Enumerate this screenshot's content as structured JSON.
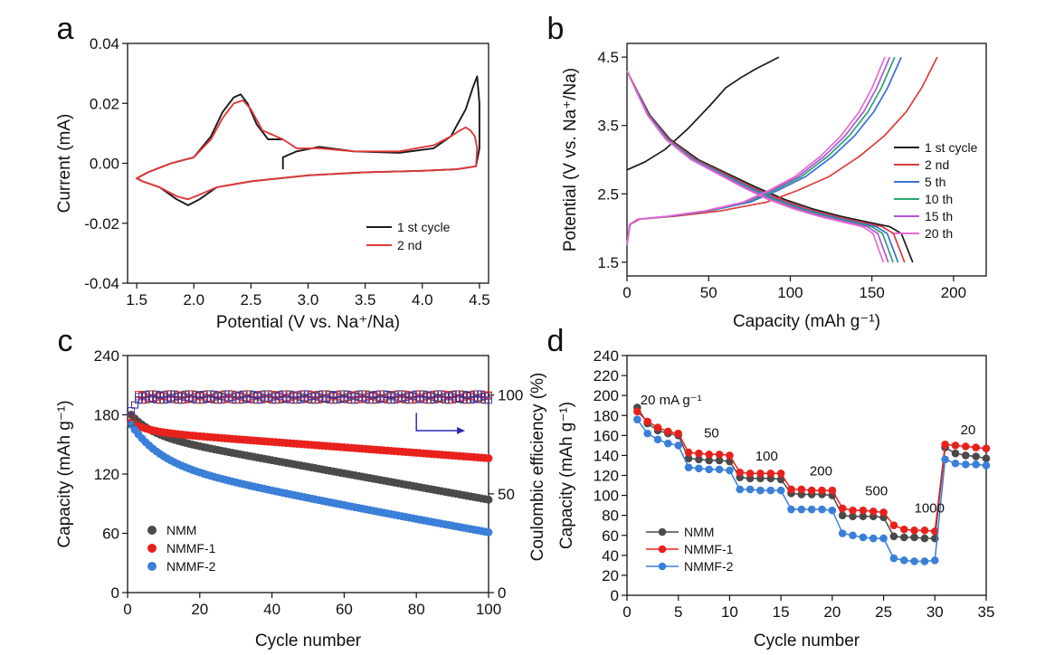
{
  "colors": {
    "black": "#1a1a1a",
    "red": "#e0393a",
    "nmm": "#4a4a4a",
    "nmmf1": "#e8211d",
    "nmmf2": "#3a7fd8",
    "blue": "#2b2bb5",
    "b5": "#3b6fd6",
    "b10": "#2aa56f",
    "b15": "#b354d6",
    "b20": "#e46ad2"
  },
  "chart_data": [
    {
      "type": "line",
      "panel": "a",
      "xlabel": "Potential (V vs. Na⁺/Na)",
      "ylabel": "Current (mA)",
      "xlim": [
        1.5,
        4.5
      ],
      "ylim": [
        -0.04,
        0.04
      ],
      "xticks": [
        "1.5",
        "2.0",
        "2.5",
        "3.0",
        "3.5",
        "4.0",
        "4.5"
      ],
      "yticks": [
        "-0.04",
        "-0.02",
        "0.00",
        "0.02",
        "0.04"
      ],
      "legend": "bottom-right",
      "series": [
        {
          "name": "1 st cycle",
          "color_key": "black",
          "x": [
            2.78,
            2.78,
            2.9,
            3.1,
            3.4,
            3.8,
            4.1,
            4.25,
            4.38,
            4.44,
            4.48,
            4.5,
            4.5,
            4.47,
            4.3,
            4.0,
            3.5,
            3.0,
            2.5,
            2.2,
            2.05,
            1.95,
            1.85,
            1.7,
            1.55,
            1.5,
            1.6,
            1.8,
            2.0,
            2.15,
            2.25,
            2.35,
            2.41,
            2.47,
            2.55,
            2.65,
            2.78
          ],
          "y": [
            -0.002,
            0.002,
            0.004,
            0.0055,
            0.004,
            0.0035,
            0.005,
            0.009,
            0.018,
            0.025,
            0.029,
            0.02,
            0.005,
            -0.001,
            -0.002,
            -0.0025,
            -0.003,
            -0.004,
            -0.006,
            -0.008,
            -0.012,
            -0.014,
            -0.012,
            -0.008,
            -0.006,
            -0.005,
            -0.003,
            0.0,
            0.002,
            0.009,
            0.017,
            0.022,
            0.023,
            0.02,
            0.013,
            0.008,
            0.008
          ]
        },
        {
          "name": "2 nd",
          "color_key": "red",
          "x": [
            2.78,
            2.9,
            3.1,
            3.4,
            3.8,
            4.1,
            4.25,
            4.33,
            4.38,
            4.42,
            4.46,
            4.48,
            4.47,
            4.3,
            4.0,
            3.5,
            3.0,
            2.5,
            2.2,
            2.05,
            1.95,
            1.85,
            1.7,
            1.55,
            1.5,
            1.6,
            1.8,
            2.0,
            2.15,
            2.25,
            2.35,
            2.43,
            2.5,
            2.6,
            2.78
          ],
          "y": [
            0.008,
            0.005,
            0.005,
            0.004,
            0.004,
            0.006,
            0.009,
            0.011,
            0.012,
            0.011,
            0.009,
            0.005,
            -0.001,
            -0.002,
            -0.0025,
            -0.003,
            -0.004,
            -0.006,
            -0.008,
            -0.0105,
            -0.012,
            -0.011,
            -0.008,
            -0.006,
            -0.005,
            -0.003,
            0.0,
            0.002,
            0.008,
            0.015,
            0.02,
            0.021,
            0.018,
            0.011,
            0.008
          ]
        }
      ]
    },
    {
      "type": "line",
      "panel": "b",
      "xlabel": "Capacity (mAh g⁻¹)",
      "ylabel": "Potential (V vs. Na⁺/Na)",
      "xlim": [
        0,
        220
      ],
      "ylim": [
        1.3,
        4.7
      ],
      "xticks": [
        "0",
        "50",
        "100",
        "150",
        "200"
      ],
      "yticks": [
        "1.5",
        "2.5",
        "3.5",
        "4.5"
      ],
      "legend": "right",
      "series": [
        {
          "name": "1 st cycle",
          "color_key": "black",
          "charge_end": 93,
          "discharge_end": 175
        },
        {
          "name": "2 nd",
          "color_key": "red",
          "charge_end": 190,
          "discharge_end": 170
        },
        {
          "name": "5 th",
          "color_key": "b5",
          "charge_end": 168,
          "discharge_end": 166
        },
        {
          "name": "10 th",
          "color_key": "b10",
          "charge_end": 164,
          "discharge_end": 163
        },
        {
          "name": "15 th",
          "color_key": "b15",
          "charge_end": 161,
          "discharge_end": 160
        },
        {
          "name": "20 th",
          "color_key": "b20",
          "charge_end": 158,
          "discharge_end": 157
        }
      ]
    },
    {
      "type": "scatter",
      "panel": "c",
      "xlabel": "Cycle number",
      "ylabel": "Capacity (mAh g⁻¹)",
      "y2label": "Coulombic efficiency (%)",
      "xlim": [
        0,
        100
      ],
      "ylim": [
        0,
        240
      ],
      "y2lim": [
        0,
        120
      ],
      "xticks": [
        "0",
        "20",
        "40",
        "60",
        "80",
        "100"
      ],
      "yticks": [
        "0",
        "60",
        "120",
        "180",
        "240"
      ],
      "y2ticks": [
        "0",
        "50",
        "100"
      ],
      "legend": "bottom-left",
      "series": [
        {
          "name": "NMM",
          "color_key": "nmm",
          "start": 180,
          "end": 94
        },
        {
          "name": "NMMF-1",
          "color_key": "nmmf1",
          "start": 172,
          "end": 136
        },
        {
          "name": "NMMF-2",
          "color_key": "nmmf2",
          "start": 170,
          "end": 61
        }
      ],
      "coulombic_efficiency_level": 99
    },
    {
      "type": "line",
      "panel": "d",
      "xlabel": "Cycle number",
      "ylabel": "Capacity (mAh g⁻¹)",
      "xlim": [
        0,
        35
      ],
      "ylim": [
        0,
        240
      ],
      "xticks": [
        "0",
        "5",
        "10",
        "15",
        "20",
        "25",
        "30",
        "35"
      ],
      "yticks": [
        "0",
        "20",
        "40",
        "60",
        "80",
        "100",
        "120",
        "140",
        "160",
        "180",
        "200",
        "220",
        "240"
      ],
      "legend": "bottom-left",
      "annotations": [
        "20 mA g⁻¹",
        "50",
        "100",
        "200",
        "500",
        "1000",
        "20"
      ],
      "x": [
        1,
        2,
        3,
        4,
        5,
        6,
        7,
        8,
        9,
        10,
        11,
        12,
        13,
        14,
        15,
        16,
        17,
        18,
        19,
        20,
        21,
        22,
        23,
        24,
        25,
        26,
        27,
        28,
        29,
        30,
        31,
        32,
        33,
        34,
        35
      ],
      "series": [
        {
          "name": "NMM",
          "color_key": "nmm",
          "values": [
            188,
            172,
            165,
            162,
            160,
            137,
            136,
            135,
            135,
            134,
            118,
            117,
            117,
            117,
            116,
            102,
            101,
            101,
            101,
            100,
            80,
            79,
            79,
            79,
            78,
            59,
            58,
            58,
            57,
            57,
            148,
            142,
            140,
            139,
            137
          ]
        },
        {
          "name": "NMMF-1",
          "color_key": "nmmf1",
          "values": [
            184,
            174,
            168,
            164,
            162,
            143,
            142,
            141,
            141,
            140,
            123,
            122,
            122,
            122,
            122,
            106,
            106,
            105,
            105,
            105,
            87,
            85,
            85,
            84,
            83,
            70,
            66,
            65,
            65,
            64,
            151,
            150,
            149,
            148,
            147
          ]
        },
        {
          "name": "NMMF-2",
          "color_key": "nmmf2",
          "values": [
            176,
            162,
            156,
            152,
            150,
            128,
            127,
            126,
            126,
            125,
            106,
            106,
            105,
            105,
            105,
            86,
            86,
            86,
            86,
            85,
            62,
            60,
            58,
            57,
            57,
            37,
            35,
            34,
            34,
            35,
            136,
            132,
            131,
            131,
            130
          ]
        }
      ]
    }
  ]
}
